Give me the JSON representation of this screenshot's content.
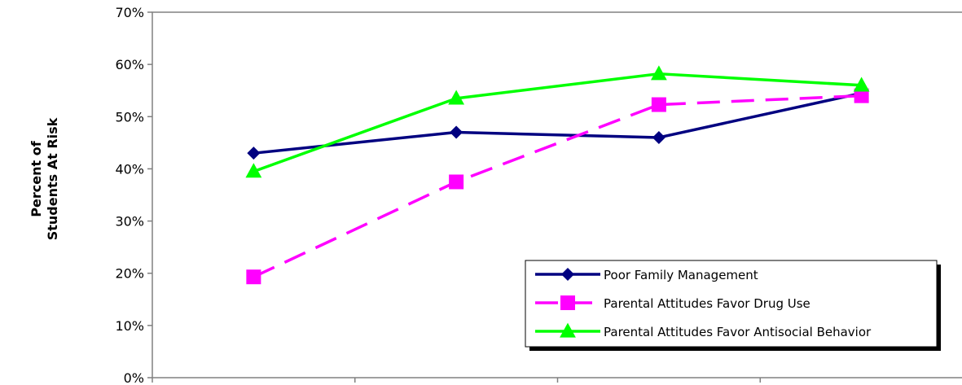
{
  "chart_data": {
    "type": "line",
    "title": "",
    "xlabel": "",
    "ylabel_lines": [
      "Percent of",
      "Students At Risk"
    ],
    "ylim": [
      0,
      70
    ],
    "yticks": [
      0,
      10,
      20,
      30,
      40,
      50,
      60,
      70
    ],
    "ytick_labels": [
      "0%",
      "10%",
      "20%",
      "30%",
      "40%",
      "50%",
      "60%",
      "70%"
    ],
    "categories": [
      "",
      "",
      "",
      ""
    ],
    "grid": false,
    "legend_position": "bottom-right",
    "series": [
      {
        "name": "Poor Family Management",
        "values": [
          43,
          47,
          46,
          54.5
        ],
        "color": "#000080",
        "marker": "diamond",
        "dash": "solid"
      },
      {
        "name": "Parental Attitudes Favor Drug Use",
        "values": [
          19.3,
          37.5,
          52.3,
          54
        ],
        "color": "#FF00FF",
        "marker": "square",
        "dash": "dashed"
      },
      {
        "name": "Parental Attitudes Favor Antisocial Behavior",
        "values": [
          39.5,
          53.5,
          58.2,
          56
        ],
        "color": "#00FF00",
        "marker": "triangle",
        "dash": "solid"
      }
    ]
  }
}
